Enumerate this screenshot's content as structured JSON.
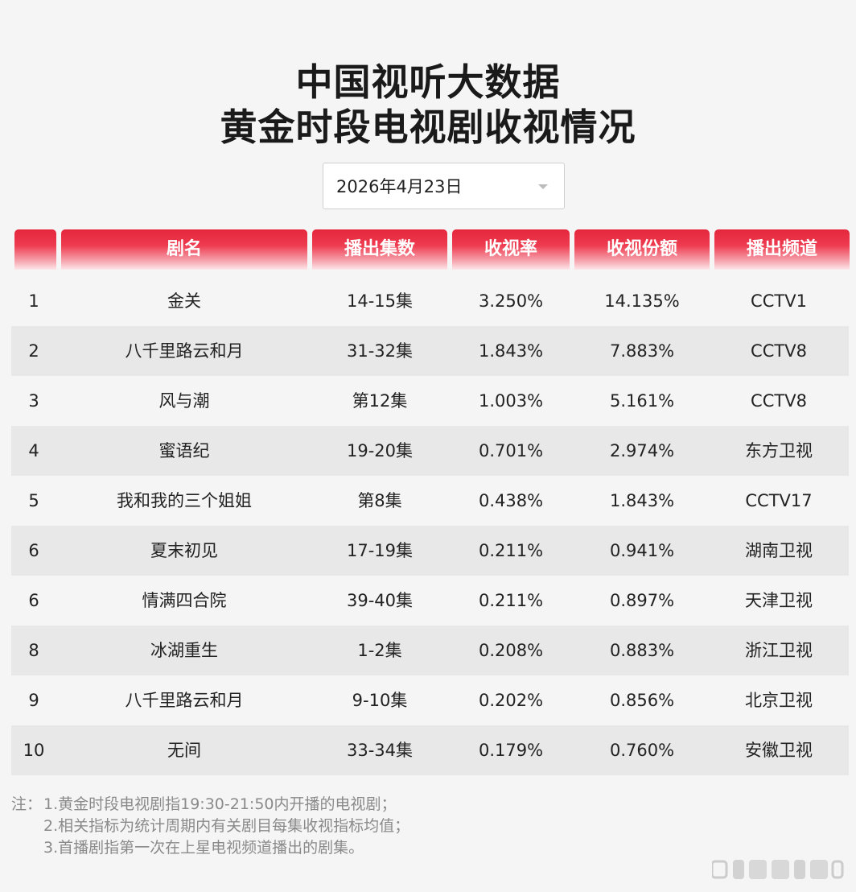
{
  "title": {
    "line1": "中国视听大数据",
    "line2": "黄金时段电视剧收视情况"
  },
  "date_select": {
    "value": "2026年4月23日"
  },
  "table": {
    "headers": [
      "",
      "剧名",
      "播出集数",
      "收视率",
      "收视份额",
      "播出频道"
    ],
    "rows": [
      [
        "1",
        "金关",
        "14-15集",
        "3.250%",
        "14.135%",
        "CCTV1"
      ],
      [
        "2",
        "八千里路云和月",
        "31-32集",
        "1.843%",
        "7.883%",
        "CCTV8"
      ],
      [
        "3",
        "风与潮",
        "第12集",
        "1.003%",
        "5.161%",
        "CCTV8"
      ],
      [
        "4",
        "蜜语纪",
        "19-20集",
        "0.701%",
        "2.974%",
        "东方卫视"
      ],
      [
        "5",
        "我和我的三个姐姐",
        "第8集",
        "0.438%",
        "1.843%",
        "CCTV17"
      ],
      [
        "6",
        "夏末初见",
        "17-19集",
        "0.211%",
        "0.941%",
        "湖南卫视"
      ],
      [
        "6",
        "情满四合院",
        "39-40集",
        "0.211%",
        "0.897%",
        "天津卫视"
      ],
      [
        "8",
        "冰湖重生",
        "1-2集",
        "0.208%",
        "0.883%",
        "浙江卫视"
      ],
      [
        "9",
        "八千里路云和月",
        "9-10集",
        "0.202%",
        "0.856%",
        "北京卫视"
      ],
      [
        "10",
        "无间",
        "33-34集",
        "0.179%",
        "0.760%",
        "安徽卫视"
      ]
    ]
  },
  "notes": {
    "prefix": "注：",
    "items": [
      "1.黄金时段电视剧指19:30-21:50内开播的电视剧；",
      "2.相关指标为统计周期内有关剧目每集收视指标均值；",
      "3.首播剧指第一次在上星电视频道播出的剧集。"
    ]
  },
  "colors": {
    "header_red": "#e4263c",
    "row_shade": "#e8e8e8",
    "background": "#f5f5f5"
  }
}
